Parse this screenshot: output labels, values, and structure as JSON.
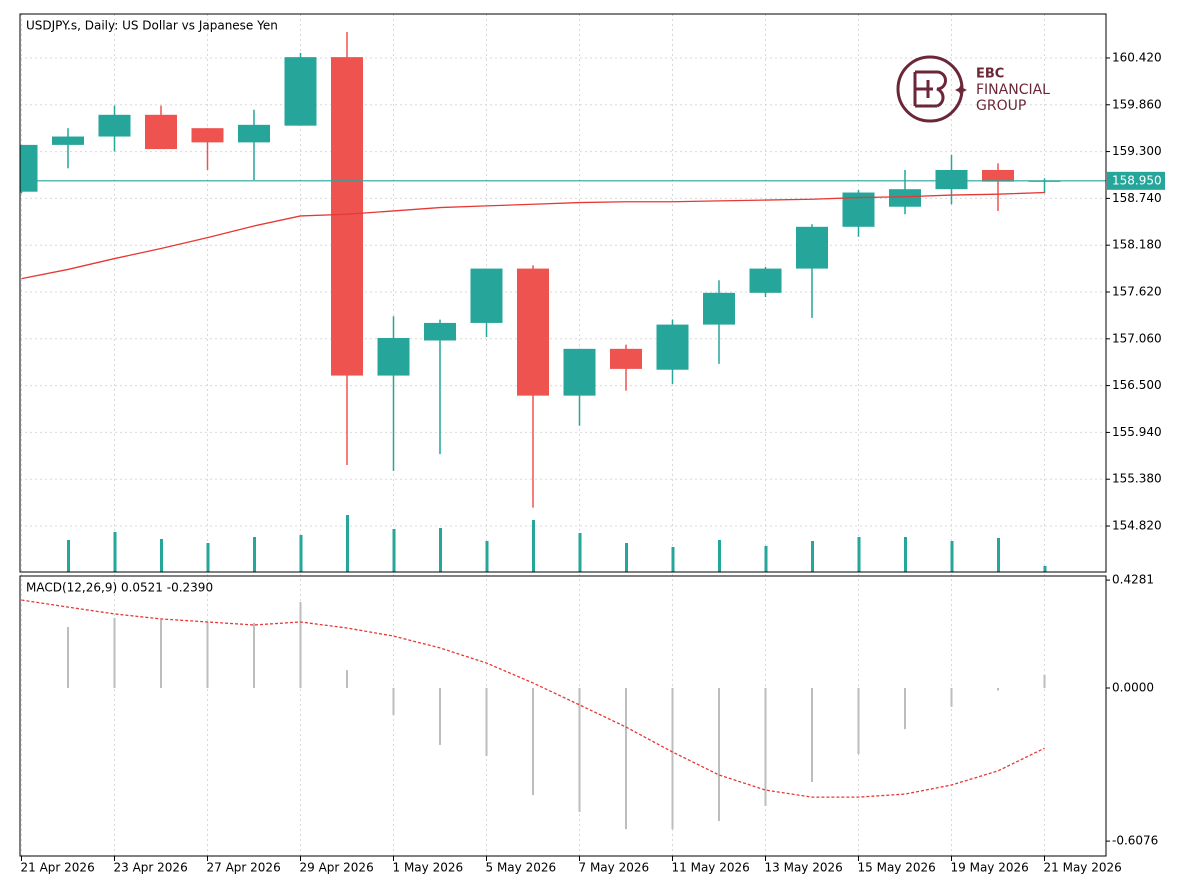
{
  "chart_data": [
    {
      "type": "candlestick",
      "title": "USDJPY.s, Daily:  US Dollar vs Japanese Yen",
      "categories": [
        "21 Apr 2026",
        null,
        "23 Apr 2026",
        null,
        "27 Apr 2026",
        null,
        "29 Apr 2026",
        null,
        "1 May 2026",
        null,
        "5 May 2026",
        null,
        "7 May 2026",
        null,
        "11 May 2026",
        null,
        "13 May 2026",
        null,
        "15 May 2026",
        null,
        "19 May 2026",
        null,
        "21 May 2026"
      ],
      "open": [
        158.82,
        159.38,
        159.48,
        159.74,
        159.58,
        159.41,
        159.61,
        160.43,
        156.62,
        157.04,
        157.25,
        157.9,
        156.38,
        156.94,
        156.69,
        157.23,
        157.61,
        157.9,
        158.4,
        158.64,
        158.85,
        159.08,
        158.94
      ],
      "high": [
        159.38,
        159.58,
        159.85,
        159.85,
        159.58,
        159.8,
        160.48,
        160.73,
        157.33,
        157.29,
        157.9,
        157.94,
        156.94,
        156.99,
        157.29,
        157.76,
        157.92,
        158.43,
        158.84,
        159.08,
        159.26,
        159.16,
        158.98
      ],
      "low": [
        158.8,
        159.1,
        159.3,
        159.33,
        159.08,
        158.96,
        159.61,
        155.55,
        155.48,
        155.68,
        157.08,
        155.04,
        156.02,
        156.44,
        156.52,
        156.76,
        157.56,
        157.31,
        158.28,
        158.55,
        158.67,
        158.59,
        158.8
      ],
      "close": [
        159.38,
        159.48,
        159.74,
        159.33,
        159.41,
        159.62,
        160.43,
        156.62,
        157.07,
        157.25,
        157.9,
        156.38,
        156.94,
        156.7,
        157.23,
        157.61,
        157.9,
        158.4,
        158.81,
        158.85,
        159.08,
        158.94,
        158.95
      ],
      "volumes": [
        null,
        32,
        40,
        33,
        29,
        35,
        37,
        57,
        43,
        44,
        31,
        52,
        39,
        29,
        25,
        32,
        26,
        31,
        35,
        35,
        31,
        34,
        6
      ],
      "moving_average": [
        157.78,
        157.89,
        158.02,
        158.14,
        158.27,
        158.41,
        158.53,
        158.55,
        158.59,
        158.63,
        158.65,
        158.67,
        158.69,
        158.7,
        158.7,
        158.71,
        158.72,
        158.73,
        158.75,
        158.76,
        158.78,
        158.79,
        158.81
      ],
      "current_price": {
        "value": 158.95,
        "label": "158.950"
      },
      "up_color": "#26a69a",
      "down_color": "#ef5350",
      "ma_color": "#e53935",
      "volume_color": "#26a69a",
      "ylim": [
        154.27,
        160.946
      ],
      "yticks": [
        {
          "value": 160.42,
          "label": "160.420"
        },
        {
          "value": 159.86,
          "label": "159.860"
        },
        {
          "value": 159.3,
          "label": "159.300"
        },
        {
          "value": 158.74,
          "label": "158.740"
        },
        {
          "value": 158.18,
          "label": "158.180"
        },
        {
          "value": 157.62,
          "label": "157.620"
        },
        {
          "value": 157.06,
          "label": "157.060"
        },
        {
          "value": 156.5,
          "label": "156.500"
        },
        {
          "value": 155.94,
          "label": "155.940"
        },
        {
          "value": 155.38,
          "label": "155.380"
        },
        {
          "value": 154.82,
          "label": "154.820"
        }
      ],
      "grid": true
    },
    {
      "type": "macd",
      "title": "MACD(12,26,9) 0.0521 -0.2390",
      "histogram": [
        null,
        0.242,
        0.278,
        0.27,
        0.262,
        0.258,
        0.341,
        0.071,
        -0.107,
        -0.226,
        -0.27,
        -0.425,
        -0.492,
        -0.56,
        -0.56,
        -0.528,
        -0.468,
        -0.373,
        -0.262,
        -0.163,
        -0.075,
        -0.01,
        0.0521
      ],
      "signal": [
        0.349,
        0.321,
        0.294,
        0.274,
        0.262,
        0.25,
        0.262,
        0.238,
        0.206,
        0.159,
        0.099,
        0.02,
        -0.067,
        -0.155,
        -0.254,
        -0.345,
        -0.405,
        -0.433,
        -0.433,
        -0.421,
        -0.385,
        -0.329,
        -0.239
      ],
      "histogram_color": "#bdbdbd",
      "signal_color": "#e53935",
      "ylim": [
        -0.6667,
        0.4444
      ],
      "yticks": [
        {
          "value": 0.4281,
          "label": "0.4281"
        },
        {
          "value": 0,
          "label": "0.0000"
        },
        {
          "value": -0.6076,
          "label": "-0.6076"
        }
      ]
    }
  ],
  "logo": [
    "EBC",
    "FINANCIAL",
    "GROUP"
  ]
}
